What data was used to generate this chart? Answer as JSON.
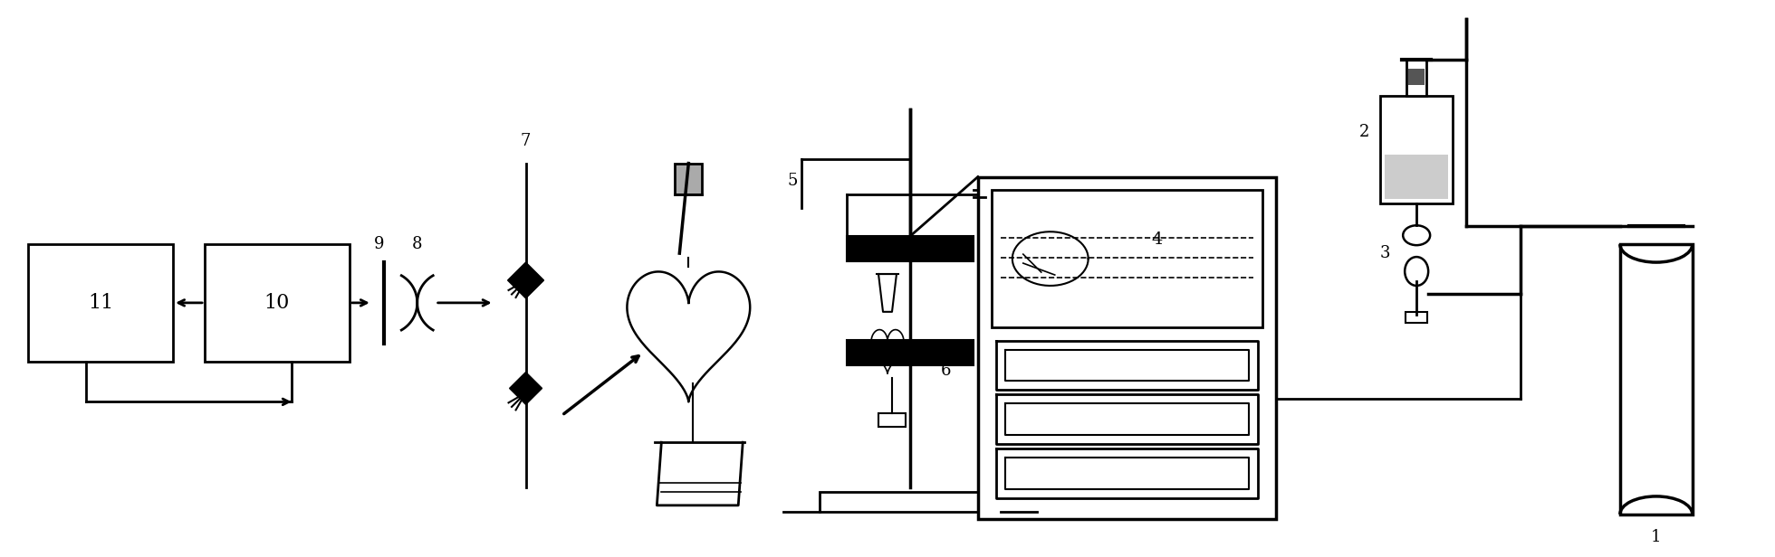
{
  "bg_color": "#ffffff",
  "lc": "#000000",
  "fig_width": 19.6,
  "fig_height": 6.16,
  "dpi": 100
}
